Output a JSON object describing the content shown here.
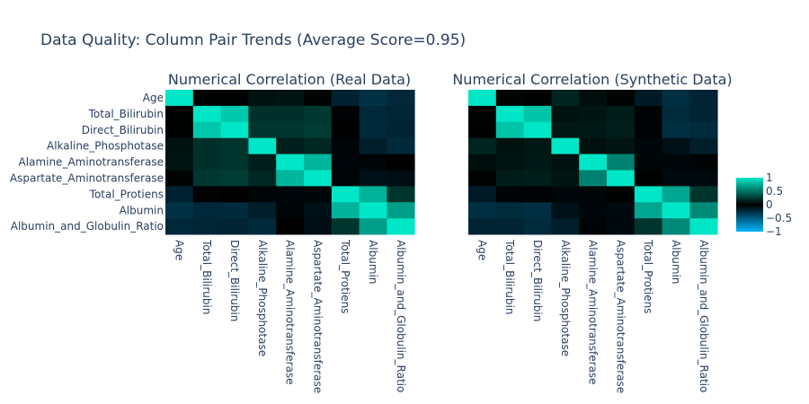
{
  "title": "Data Quality: Column Pair Trends (Average Score=0.95)",
  "colors": {
    "neg_end": "#00b5ff",
    "zero": "#000000",
    "pos_end": "#00e6c6",
    "text": "#2a3f5f",
    "background": "#ffffff"
  },
  "colorbar": {
    "range": [
      -1,
      1
    ],
    "ticks": [
      {
        "value": 1,
        "label": "1"
      },
      {
        "value": 0.5,
        "label": "0.5"
      },
      {
        "value": 0,
        "label": "0"
      },
      {
        "value": -0.5,
        "label": "−0.5"
      },
      {
        "value": -1,
        "label": "−1"
      }
    ]
  },
  "chart_data": [
    {
      "type": "heatmap",
      "title": "Numerical Correlation (Real Data)",
      "columns": [
        "Age",
        "Total_Bilirubin",
        "Direct_Bilirubin",
        "Alkaline_Phosphotase",
        "Alamine_Aminotransferase",
        "Aspartate_Aminotransferase",
        "Total_Protiens",
        "Albumin",
        "Albumin_and_Globulin_Ratio"
      ],
      "rows": [
        "Age",
        "Total_Bilirubin",
        "Direct_Bilirubin",
        "Alkaline_Phosphotase",
        "Alamine_Aminotransferase",
        "Aspartate_Aminotransferase",
        "Total_Protiens",
        "Albumin",
        "Albumin_and_Globulin_Ratio"
      ],
      "values": [
        [
          1.0,
          0.01,
          0.01,
          0.08,
          0.09,
          0.02,
          -0.19,
          -0.27,
          -0.22
        ],
        [
          0.01,
          1.0,
          0.87,
          0.21,
          0.21,
          0.24,
          -0.01,
          -0.22,
          -0.21
        ],
        [
          0.01,
          0.87,
          1.0,
          0.23,
          0.23,
          0.26,
          0.0,
          -0.23,
          -0.2
        ],
        [
          0.08,
          0.21,
          0.23,
          1.0,
          0.13,
          0.17,
          -0.03,
          -0.17,
          -0.23
        ],
        [
          0.09,
          0.21,
          0.23,
          0.13,
          1.0,
          0.79,
          -0.04,
          -0.03,
          -0.0
        ],
        [
          0.02,
          0.24,
          0.26,
          0.17,
          0.79,
          1.0,
          -0.03,
          -0.09,
          -0.07
        ],
        [
          -0.19,
          -0.01,
          0.0,
          -0.03,
          -0.04,
          -0.03,
          1.0,
          0.78,
          0.23
        ],
        [
          -0.27,
          -0.22,
          -0.23,
          -0.17,
          -0.03,
          -0.09,
          0.78,
          1.0,
          0.69
        ],
        [
          -0.22,
          -0.21,
          -0.2,
          -0.23,
          -0.0,
          -0.07,
          0.23,
          0.69,
          1.0
        ]
      ]
    },
    {
      "type": "heatmap",
      "title": "Numerical Correlation (Synthetic Data)",
      "columns": [
        "Age",
        "Total_Bilirubin",
        "Direct_Bilirubin",
        "Alkaline_Phosphotase",
        "Alamine_Aminotransferase",
        "Aspartate_Aminotransferase",
        "Total_Protiens",
        "Albumin",
        "Albumin_and_Globulin_Ratio"
      ],
      "rows": [
        "Age",
        "Total_Bilirubin",
        "Direct_Bilirubin",
        "Alkaline_Phosphotase",
        "Alamine_Aminotransferase",
        "Aspartate_Aminotransferase",
        "Total_Protiens",
        "Albumin",
        "Albumin_and_Globulin_Ratio"
      ],
      "values": [
        [
          1.0,
          0.02,
          0.01,
          0.16,
          0.06,
          0.02,
          -0.15,
          -0.26,
          -0.2
        ],
        [
          0.02,
          1.0,
          0.85,
          0.08,
          0.09,
          0.12,
          -0.02,
          -0.24,
          -0.2
        ],
        [
          0.01,
          0.85,
          1.0,
          0.1,
          0.11,
          0.13,
          -0.01,
          -0.26,
          -0.24
        ],
        [
          0.16,
          0.08,
          0.1,
          1.0,
          0.07,
          0.09,
          -0.04,
          -0.09,
          -0.17
        ],
        [
          0.06,
          0.09,
          0.11,
          0.07,
          1.0,
          0.56,
          0.03,
          -0.04,
          -0.02
        ],
        [
          0.02,
          0.12,
          0.13,
          0.09,
          0.56,
          1.0,
          0.01,
          -0.05,
          -0.05
        ],
        [
          -0.15,
          -0.02,
          -0.01,
          -0.04,
          0.03,
          0.01,
          1.0,
          0.72,
          0.23
        ],
        [
          -0.26,
          -0.24,
          -0.26,
          -0.09,
          -0.04,
          -0.05,
          0.72,
          1.0,
          0.6
        ],
        [
          -0.2,
          -0.2,
          -0.24,
          -0.17,
          -0.02,
          -0.05,
          0.23,
          0.6,
          1.0
        ]
      ]
    }
  ]
}
